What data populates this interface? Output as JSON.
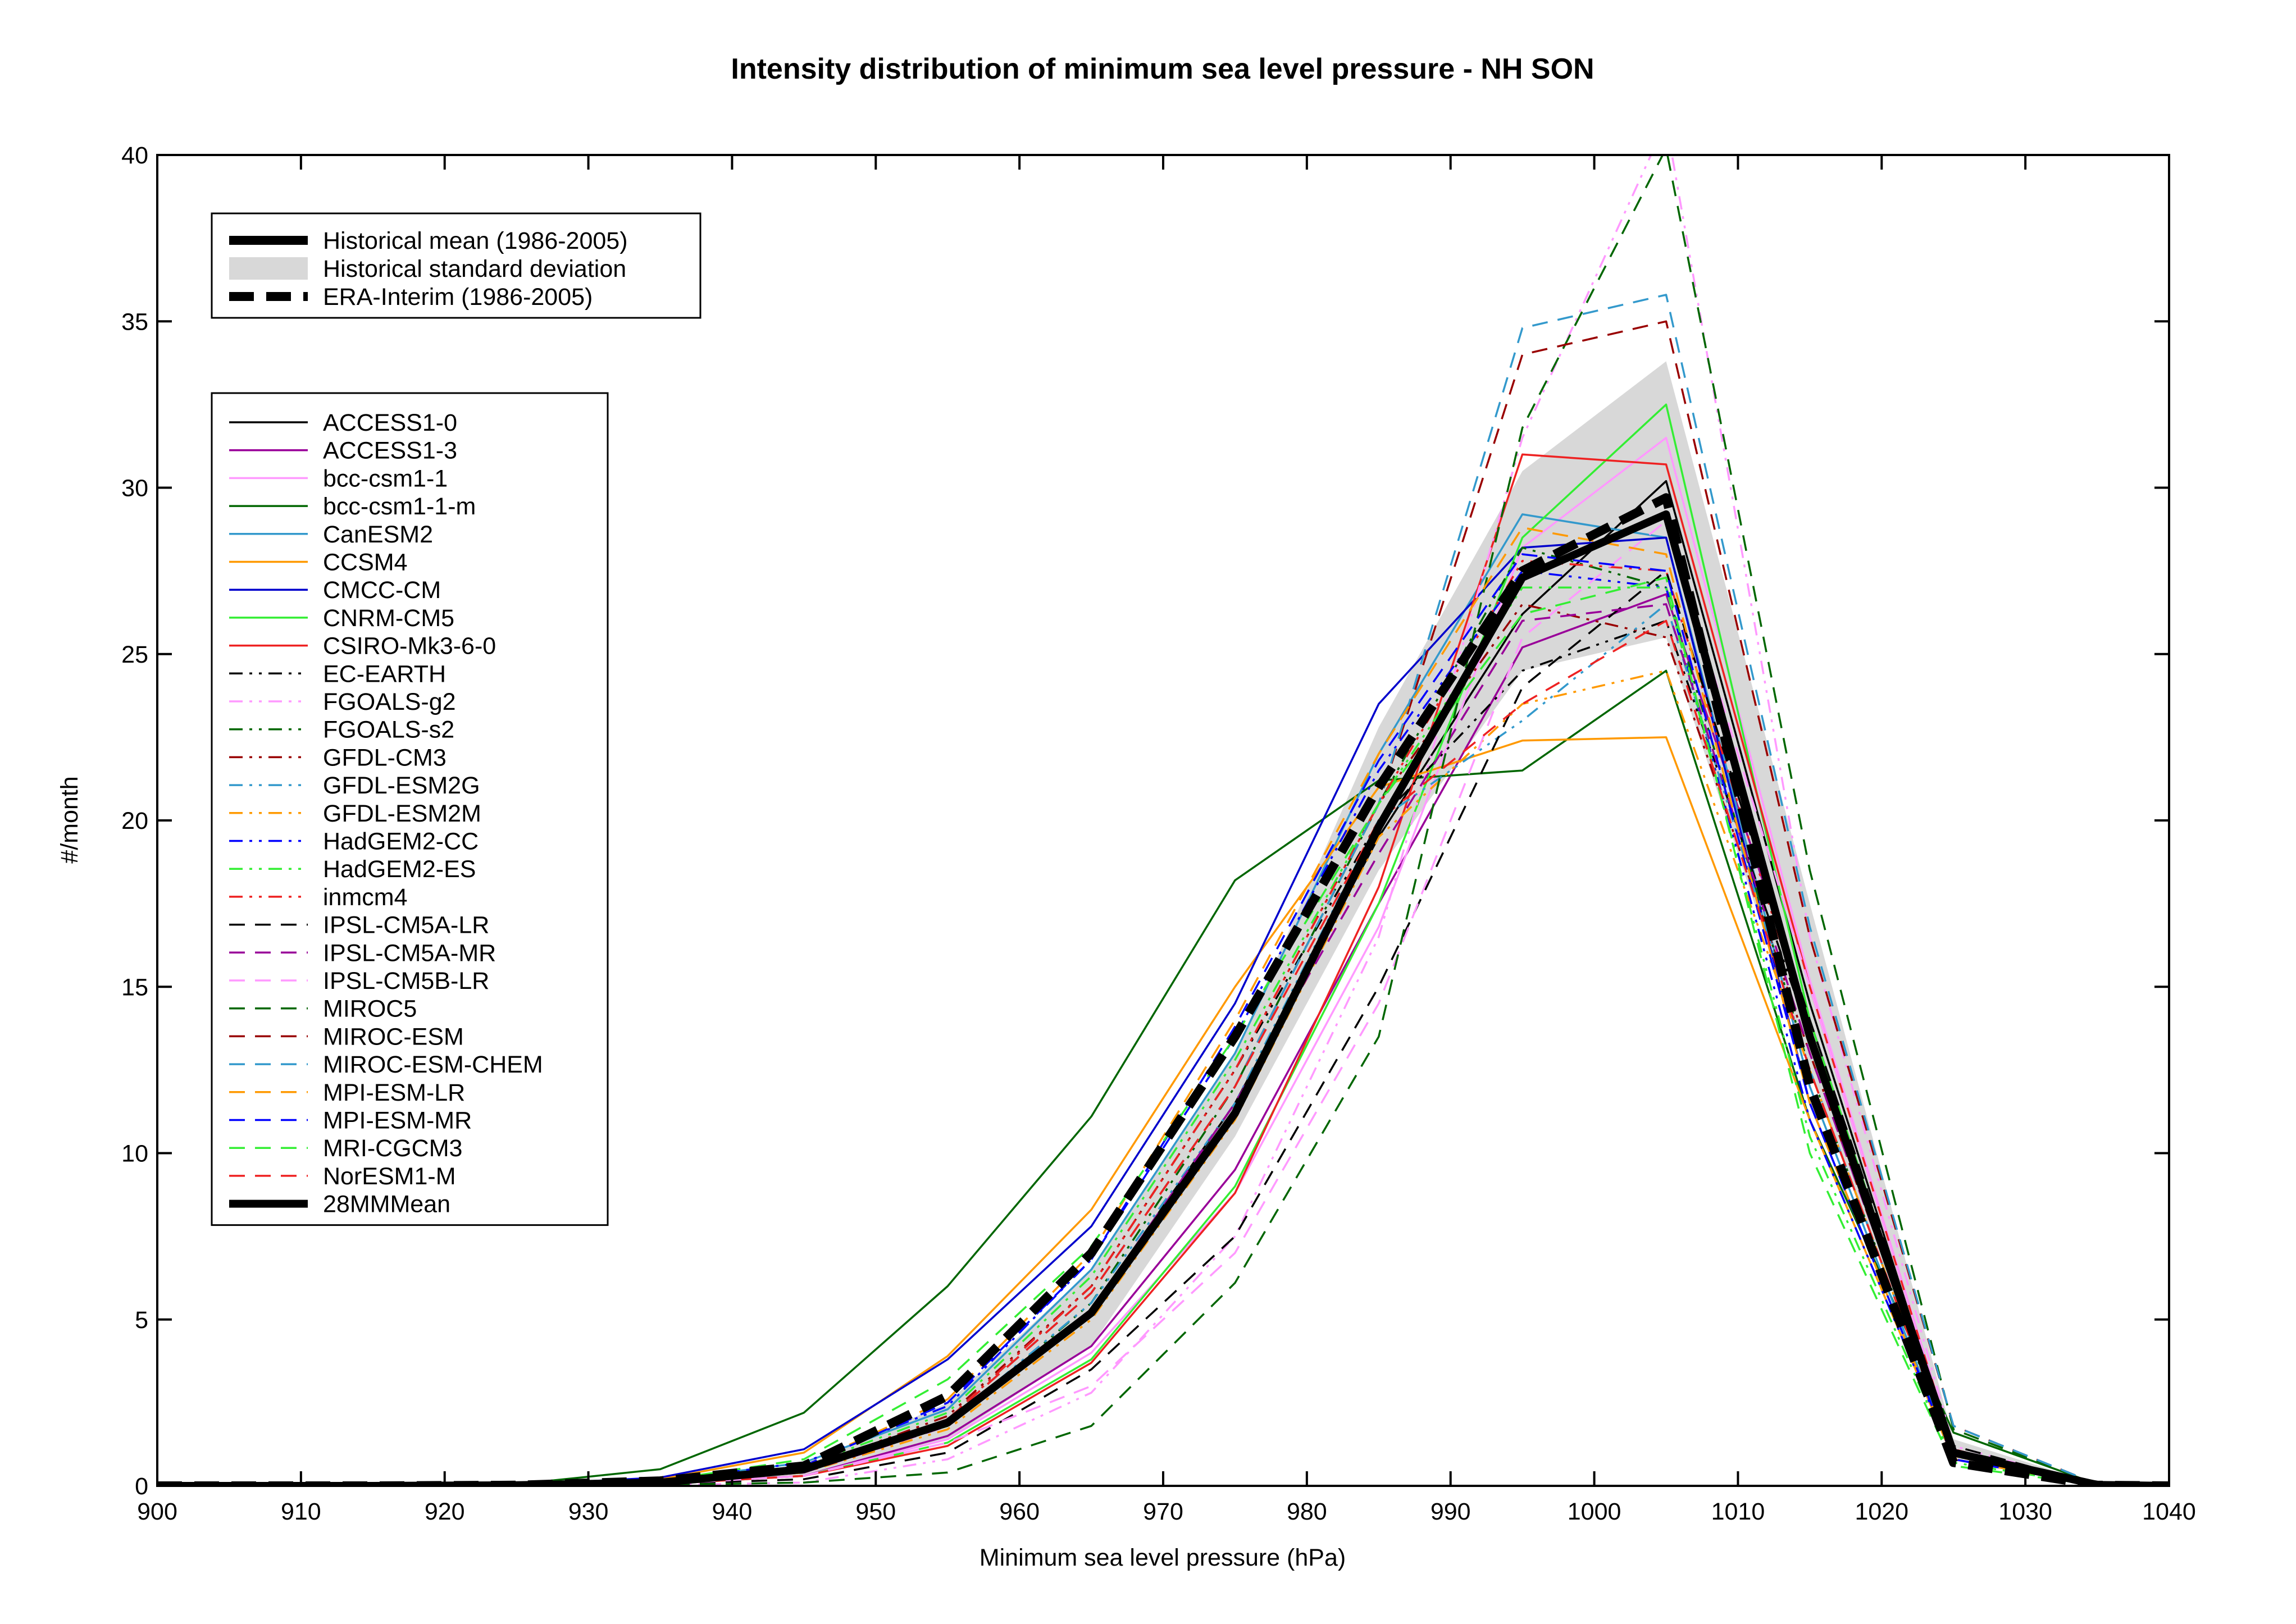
{
  "chart_data": {
    "type": "line",
    "title": "Intensity distribution of minimum sea level pressure - NH SON",
    "xlabel": "Minimum sea level pressure (hPa)",
    "ylabel": "#/month",
    "xlim": [
      900,
      1040
    ],
    "ylim": [
      0,
      40
    ],
    "xticks": [
      900,
      910,
      920,
      930,
      940,
      950,
      960,
      970,
      980,
      990,
      1000,
      1010,
      1020,
      1030,
      1040
    ],
    "yticks": [
      0,
      5,
      10,
      15,
      20,
      25,
      30,
      35,
      40
    ],
    "x": [
      905,
      915,
      925,
      935,
      945,
      955,
      965,
      975,
      985,
      995,
      1005,
      1015,
      1025,
      1035
    ],
    "reference_legend": [
      {
        "label": "Historical mean (1986-2005)",
        "style": "thick-solid",
        "color": "#000000"
      },
      {
        "label": "Historical standard deviation",
        "style": "band",
        "color": "#d8d8d8"
      },
      {
        "label": "ERA-Interim (1986-2005)",
        "style": "thick-dashed",
        "color": "#000000"
      }
    ],
    "std_band": {
      "lower": [
        0,
        0,
        0,
        0.05,
        0.3,
        1.4,
        4.2,
        10.5,
        18.5,
        24.5,
        25.5,
        12.5,
        0.8,
        0
      ],
      "upper": [
        0,
        0,
        0,
        0.15,
        0.6,
        2.5,
        6.5,
        13.0,
        22.8,
        30.5,
        33.8,
        17.5,
        1.4,
        0.05
      ]
    },
    "era_interim": {
      "name": "ERA-Interim (1986-2005)",
      "values": [
        0,
        0,
        0.02,
        0.15,
        0.6,
        2.7,
        7.0,
        13.5,
        21.0,
        27.5,
        29.7,
        12.0,
        0.7,
        0.02
      ]
    },
    "series": [
      {
        "name": "ACCESS1-0",
        "color": "#000000",
        "dash": "solid",
        "values": [
          0,
          0,
          0.02,
          0.1,
          0.4,
          1.9,
          5.3,
          11.5,
          19.5,
          26.2,
          30.2,
          14.5,
          1.0,
          0.02
        ]
      },
      {
        "name": "ACCESS1-3",
        "color": "#990099",
        "dash": "solid",
        "values": [
          0,
          0,
          0.01,
          0.08,
          0.3,
          1.5,
          4.2,
          9.5,
          17.5,
          25.2,
          26.8,
          14.0,
          1.0,
          0.02
        ]
      },
      {
        "name": "bcc-csm1-1",
        "color": "#ff99ff",
        "dash": "solid",
        "values": [
          0,
          0,
          0.01,
          0.05,
          0.3,
          1.4,
          4.0,
          8.8,
          16.8,
          28.2,
          31.5,
          15.2,
          1.1,
          0.02
        ]
      },
      {
        "name": "bcc-csm1-1-m",
        "color": "#006600",
        "dash": "solid",
        "values": [
          0,
          0,
          0.05,
          0.5,
          2.2,
          6.0,
          11.1,
          18.2,
          21.2,
          21.5,
          24.5,
          11.0,
          1.6,
          0.05
        ]
      },
      {
        "name": "CanESM2",
        "color": "#3399cc",
        "dash": "solid",
        "values": [
          0,
          0,
          0.02,
          0.15,
          0.7,
          2.3,
          6.5,
          13.0,
          22.0,
          29.2,
          28.5,
          12.0,
          0.8,
          0.02
        ]
      },
      {
        "name": "CCSM4",
        "color": "#ff9900",
        "dash": "solid",
        "values": [
          0,
          0,
          0.03,
          0.2,
          1.0,
          3.9,
          8.3,
          15.0,
          21.0,
          22.4,
          22.5,
          11.0,
          0.8,
          0.02
        ]
      },
      {
        "name": "CMCC-CM",
        "color": "#0000cc",
        "dash": "solid",
        "values": [
          0,
          0,
          0.03,
          0.25,
          1.1,
          3.8,
          7.8,
          14.5,
          23.5,
          28.2,
          28.5,
          11.5,
          0.8,
          0.02
        ]
      },
      {
        "name": "CNRM-CM5",
        "color": "#33ee33",
        "dash": "solid",
        "values": [
          0,
          0,
          0.01,
          0.05,
          0.3,
          1.3,
          3.8,
          9.0,
          17.5,
          28.5,
          32.5,
          14.0,
          1.0,
          0.02
        ]
      },
      {
        "name": "CSIRO-Mk3-6-0",
        "color": "#ee2222",
        "dash": "solid",
        "values": [
          0,
          0,
          0.01,
          0.05,
          0.3,
          1.2,
          3.7,
          8.8,
          18.0,
          31.0,
          30.7,
          15.0,
          1.1,
          0.02
        ]
      },
      {
        "name": "EC-EARTH",
        "color": "#000000",
        "dash": "dashdotdot",
        "values": [
          0,
          0,
          0.02,
          0.1,
          0.5,
          2.0,
          6.0,
          12.5,
          20.0,
          24.5,
          26.0,
          13.5,
          1.0,
          0.02
        ]
      },
      {
        "name": "FGOALS-g2",
        "color": "#ff99ff",
        "dash": "dashdotdot",
        "values": [
          0,
          0,
          0.01,
          0.02,
          0.1,
          0.8,
          2.8,
          7.5,
          16.5,
          31.5,
          41.0,
          16.5,
          1.2,
          0.02
        ]
      },
      {
        "name": "FGOALS-s2",
        "color": "#006600",
        "dash": "dashdotdot",
        "values": [
          0,
          0,
          0.01,
          0.1,
          0.5,
          1.8,
          5.5,
          12.0,
          20.5,
          28.2,
          27.0,
          12.5,
          0.9,
          0.02
        ]
      },
      {
        "name": "GFDL-CM3",
        "color": "#990000",
        "dash": "dashdotdot",
        "values": [
          0,
          0,
          0.02,
          0.1,
          0.5,
          2.1,
          6.0,
          12.5,
          20.5,
          26.5,
          25.5,
          13.0,
          1.0,
          0.02
        ]
      },
      {
        "name": "GFDL-ESM2G",
        "color": "#3399cc",
        "dash": "dashdotdot",
        "values": [
          0,
          0,
          0.02,
          0.1,
          0.5,
          1.9,
          5.5,
          11.5,
          20.0,
          23.0,
          26.5,
          12.5,
          0.9,
          0.02
        ]
      },
      {
        "name": "GFDL-ESM2M",
        "color": "#ff9900",
        "dash": "dashdotdot",
        "values": [
          0,
          0,
          0.02,
          0.1,
          0.4,
          1.7,
          5.0,
          11.0,
          19.5,
          23.5,
          24.5,
          12.5,
          0.9,
          0.02
        ]
      },
      {
        "name": "HadGEM2-CC",
        "color": "#0000ff",
        "dash": "dashdotdot",
        "values": [
          0,
          0,
          0.02,
          0.15,
          0.7,
          2.4,
          6.8,
          13.5,
          21.5,
          27.5,
          27.0,
          11.0,
          0.8,
          0.02
        ]
      },
      {
        "name": "HadGEM2-ES",
        "color": "#33ee33",
        "dash": "dashdotdot",
        "values": [
          0,
          0,
          0.02,
          0.12,
          0.6,
          2.2,
          6.3,
          12.8,
          20.5,
          27.0,
          27.0,
          10.5,
          0.7,
          0.02
        ]
      },
      {
        "name": "inmcm4",
        "color": "#ee2222",
        "dash": "dashdotdot",
        "values": [
          0,
          0,
          0.02,
          0.1,
          0.5,
          2.0,
          6.0,
          12.5,
          20.5,
          27.8,
          27.5,
          13.5,
          1.0,
          0.02
        ]
      },
      {
        "name": "IPSL-CM5A-LR",
        "color": "#000000",
        "dash": "dashed",
        "values": [
          0,
          0,
          0.01,
          0.05,
          0.2,
          1.0,
          3.5,
          7.5,
          15.0,
          24.0,
          27.5,
          14.0,
          1.2,
          0.03
        ]
      },
      {
        "name": "IPSL-CM5A-MR",
        "color": "#990099",
        "dash": "dashed",
        "values": [
          0,
          0,
          0.02,
          0.1,
          0.4,
          1.8,
          5.3,
          11.5,
          19.0,
          26.0,
          26.5,
          13.0,
          1.0,
          0.02
        ]
      },
      {
        "name": "IPSL-CM5B-LR",
        "color": "#ff99ff",
        "dash": "dashed",
        "values": [
          0,
          0,
          0.01,
          0.05,
          0.3,
          1.3,
          3.0,
          7.0,
          14.5,
          25.5,
          29.0,
          15.0,
          1.1,
          0.02
        ]
      },
      {
        "name": "MIROC5",
        "color": "#006600",
        "dash": "dashed",
        "values": [
          0,
          0,
          0.01,
          0.03,
          0.1,
          0.4,
          1.8,
          6.1,
          13.5,
          31.8,
          40.2,
          18.5,
          1.7,
          0.05
        ]
      },
      {
        "name": "MIROC-ESM",
        "color": "#990000",
        "dash": "dashed",
        "values": [
          0,
          0,
          0.02,
          0.1,
          0.5,
          2.0,
          5.8,
          12.0,
          20.5,
          34.0,
          35.0,
          16.5,
          1.8,
          0.05
        ]
      },
      {
        "name": "MIROC-ESM-CHEM",
        "color": "#3399cc",
        "dash": "dashed",
        "values": [
          0,
          0,
          0.02,
          0.1,
          0.5,
          2.0,
          5.8,
          12.0,
          20.5,
          34.8,
          35.8,
          16.8,
          1.8,
          0.05
        ]
      },
      {
        "name": "MPI-ESM-LR",
        "color": "#ff9900",
        "dash": "dashed",
        "values": [
          0,
          0,
          0.02,
          0.12,
          0.6,
          2.6,
          7.0,
          14.0,
          22.0,
          28.8,
          28.0,
          11.5,
          0.8,
          0.02
        ]
      },
      {
        "name": "MPI-ESM-MR",
        "color": "#0000ff",
        "dash": "dashed",
        "values": [
          0,
          0,
          0.02,
          0.12,
          0.6,
          2.5,
          6.8,
          13.8,
          21.8,
          28.0,
          27.5,
          11.5,
          0.8,
          0.02
        ]
      },
      {
        "name": "MRI-CGCM3",
        "color": "#33ee33",
        "dash": "dashed",
        "values": [
          0,
          0,
          0.02,
          0.15,
          0.8,
          3.2,
          7.2,
          13.5,
          20.5,
          26.2,
          27.3,
          10.0,
          0.6,
          0.02
        ]
      },
      {
        "name": "NorESM1-M",
        "color": "#ee2222",
        "dash": "dashed",
        "values": [
          0,
          0,
          0.02,
          0.1,
          0.5,
          2.0,
          5.8,
          12.0,
          20.0,
          23.5,
          26.0,
          12.5,
          0.9,
          0.02
        ]
      },
      {
        "name": "28MMMean",
        "color": "#000000",
        "dash": "thick",
        "values": [
          0,
          0,
          0.02,
          0.1,
          0.5,
          1.9,
          5.2,
          11.2,
          19.8,
          27.3,
          29.2,
          13.5,
          1.0,
          0.03
        ]
      }
    ]
  }
}
